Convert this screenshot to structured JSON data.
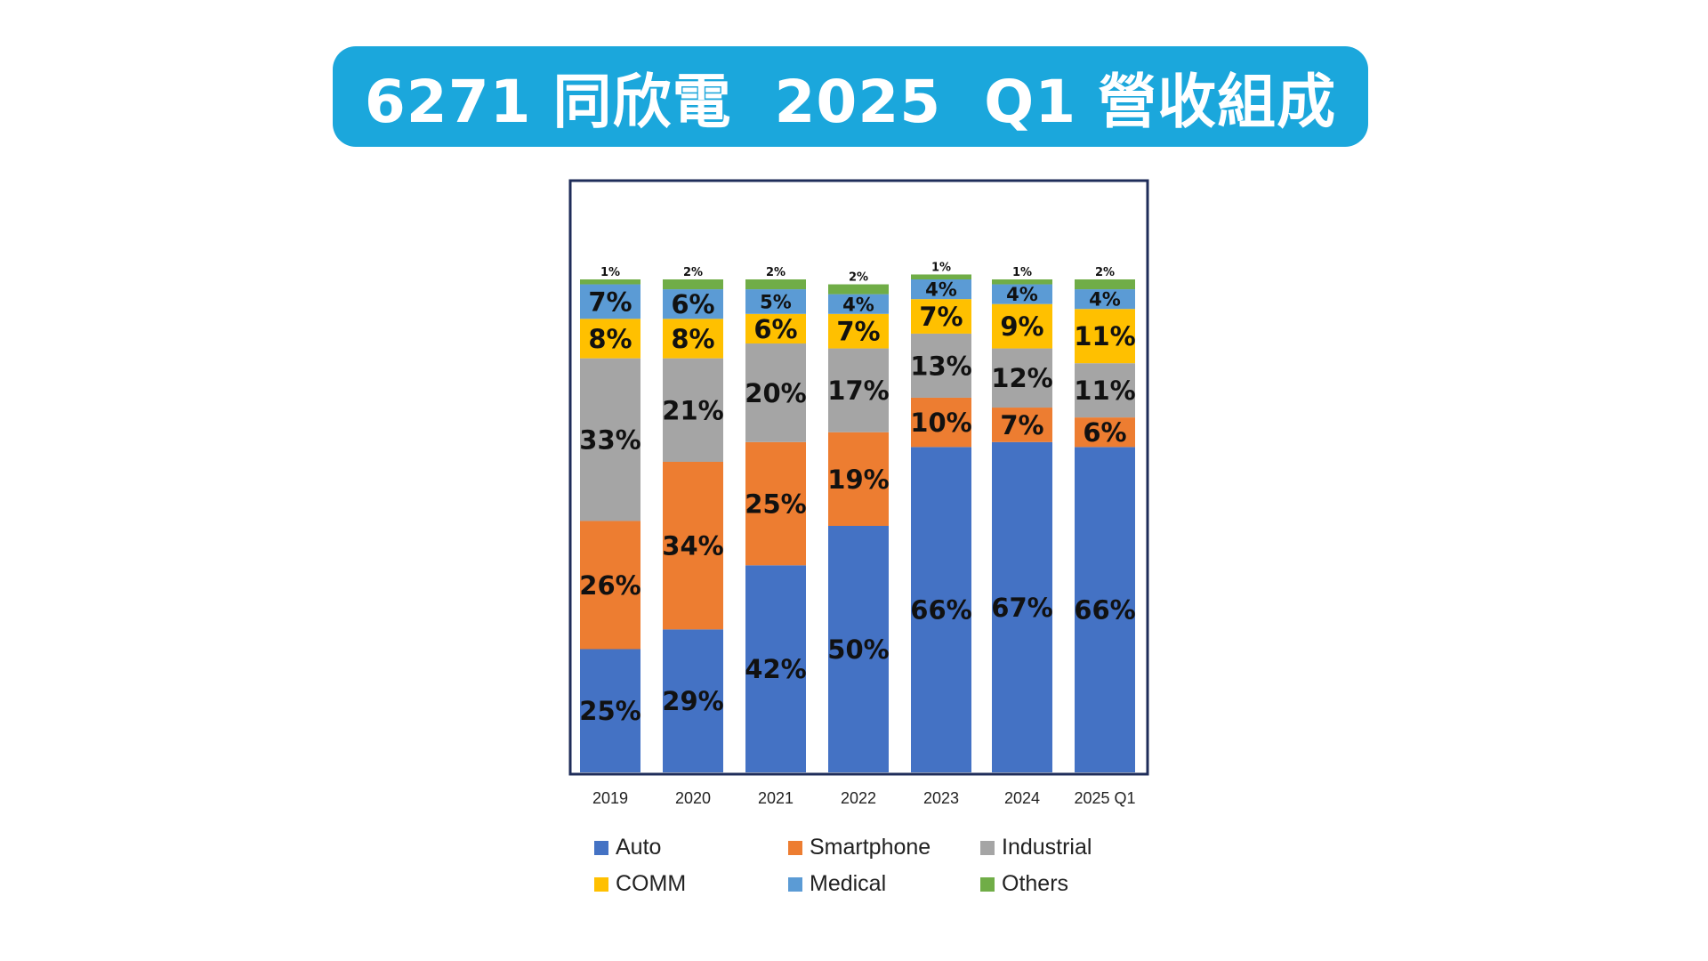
{
  "title": "6271 同欣電  2025  Q1 營收組成",
  "chart_data": {
    "type": "bar",
    "stacked": true,
    "categories": [
      "2019",
      "2020",
      "2021",
      "2022",
      "2023",
      "2024",
      "2025 Q1"
    ],
    "series": [
      {
        "name": "Auto",
        "color": "#4472c4",
        "values": [
          25,
          29,
          42,
          50,
          66,
          67,
          66
        ]
      },
      {
        "name": "Smartphone",
        "color": "#ed7d31",
        "values": [
          26,
          34,
          25,
          19,
          10,
          7,
          6
        ]
      },
      {
        "name": "Industrial",
        "color": "#a5a5a5",
        "values": [
          33,
          21,
          20,
          17,
          13,
          12,
          11
        ]
      },
      {
        "name": "COMM",
        "color": "#ffc000",
        "values": [
          8,
          8,
          6,
          7,
          7,
          9,
          11
        ]
      },
      {
        "name": "Medical",
        "color": "#5b9bd5",
        "values": [
          7,
          6,
          5,
          4,
          4,
          4,
          4
        ]
      },
      {
        "name": "Others",
        "color": "#70ad47",
        "values": [
          1,
          2,
          2,
          2,
          1,
          1,
          2
        ]
      }
    ],
    "label_suffix": "%",
    "ylim": [
      0,
      100
    ],
    "grid": false,
    "legend_placement": "bottom"
  }
}
